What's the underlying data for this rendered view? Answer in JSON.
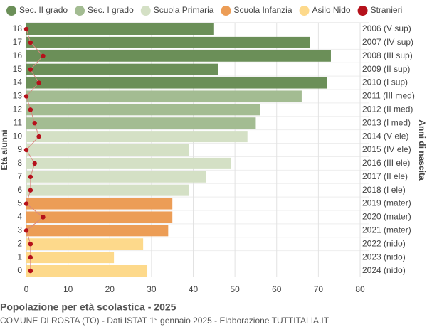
{
  "chart_data": {
    "type": "bar",
    "orientation": "horizontal",
    "title": "Popolazione per età scolastica - 2025",
    "subtitle": "COMUNE DI ROSTA (TO) - Dati ISTAT 1° gennaio 2025 - Elaborazione TUTTITALIA.IT",
    "ylabel": "Età alunni",
    "y2label": "Anni di nascita",
    "categories": [
      "0",
      "1",
      "2",
      "3",
      "4",
      "5",
      "6",
      "7",
      "8",
      "9",
      "10",
      "11",
      "12",
      "13",
      "14",
      "15",
      "16",
      "17",
      "18"
    ],
    "right_labels": [
      "2024 (nido)",
      "2023 (nido)",
      "2022 (nido)",
      "2021 (mater)",
      "2020 (mater)",
      "2019 (mater)",
      "2018 (I ele)",
      "2017 (II ele)",
      "2016 (III ele)",
      "2015 (IV ele)",
      "2014 (V ele)",
      "2013 (I med)",
      "2012 (II med)",
      "2011 (III med)",
      "2010 (I sup)",
      "2009 (II sup)",
      "2008 (III sup)",
      "2007 (IV sup)",
      "2006 (V sup)"
    ],
    "series": [
      {
        "name": "Sec. II grado",
        "color": "#6b8f58",
        "values": [
          null,
          null,
          null,
          null,
          null,
          null,
          null,
          null,
          null,
          null,
          null,
          null,
          null,
          null,
          72,
          46,
          73,
          68,
          45
        ]
      },
      {
        "name": "Sec. I grado",
        "color": "#a3bc92",
        "values": [
          null,
          null,
          null,
          null,
          null,
          null,
          null,
          null,
          null,
          null,
          null,
          55,
          56,
          66,
          null,
          null,
          null,
          null,
          null
        ]
      },
      {
        "name": "Scuola Primaria",
        "color": "#d4e0c5",
        "values": [
          null,
          null,
          null,
          null,
          null,
          null,
          39,
          43,
          49,
          39,
          53,
          null,
          null,
          null,
          null,
          null,
          null,
          null,
          null
        ]
      },
      {
        "name": "Scuola Infanzia",
        "color": "#ec9d56",
        "values": [
          null,
          null,
          null,
          34,
          35,
          35,
          null,
          null,
          null,
          null,
          null,
          null,
          null,
          null,
          null,
          null,
          null,
          null,
          null
        ]
      },
      {
        "name": "Asilo Nido",
        "color": "#fdd98b",
        "values": [
          29,
          21,
          28,
          null,
          null,
          null,
          null,
          null,
          null,
          null,
          null,
          null,
          null,
          null,
          null,
          null,
          null,
          null,
          null
        ]
      },
      {
        "name": "Stranieri",
        "color": "#b5111b",
        "type": "line",
        "values": [
          1,
          1,
          1,
          0,
          4,
          0,
          1,
          1,
          2,
          0,
          3,
          2,
          1,
          0,
          3,
          1,
          4,
          1,
          0
        ]
      }
    ],
    "xlim": [
      0,
      80
    ],
    "xticks": [
      0,
      10,
      20,
      30,
      40,
      50,
      60,
      70,
      80
    ],
    "grid": true
  }
}
